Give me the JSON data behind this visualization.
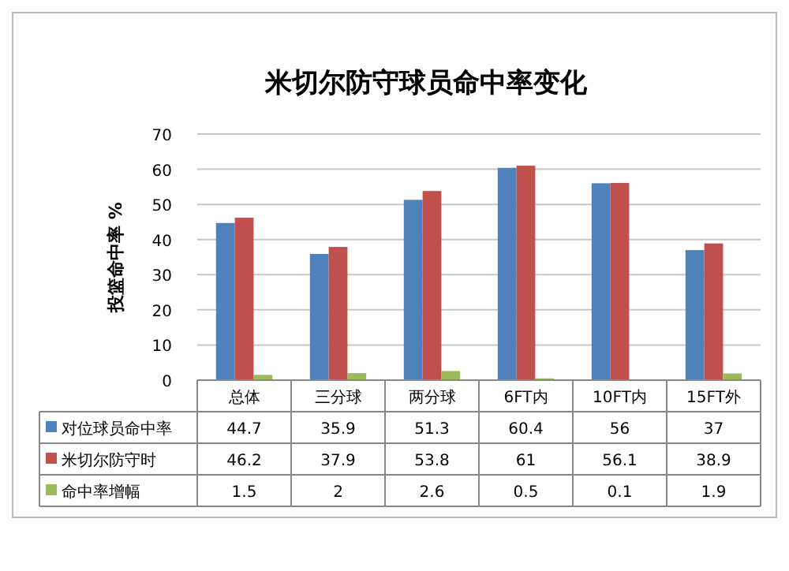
{
  "chart_data": {
    "type": "bar",
    "title": "米切尔防守球员命中率变化",
    "ylabel": "投篮命中率 %",
    "categories": [
      "总体",
      "三分球",
      "两分球",
      "6FT内",
      "10FT内",
      "15FT外"
    ],
    "series": [
      {
        "name": "对位球员命中率",
        "color": "#4f81bd",
        "values": [
          44.7,
          35.9,
          51.3,
          60.4,
          56,
          37
        ]
      },
      {
        "name": "米切尔防守时",
        "color": "#c0504d",
        "values": [
          46.2,
          37.9,
          53.8,
          61,
          56.1,
          38.9
        ]
      },
      {
        "name": "命中率增幅",
        "color": "#9bbb59",
        "values": [
          1.5,
          2,
          2.6,
          0.5,
          0.1,
          1.9
        ]
      }
    ],
    "ylim": [
      0,
      70
    ],
    "yticks": [
      0,
      10,
      20,
      30,
      40,
      50,
      60,
      70
    ],
    "grid": "y",
    "legend": "bottom",
    "data_labels": true
  }
}
